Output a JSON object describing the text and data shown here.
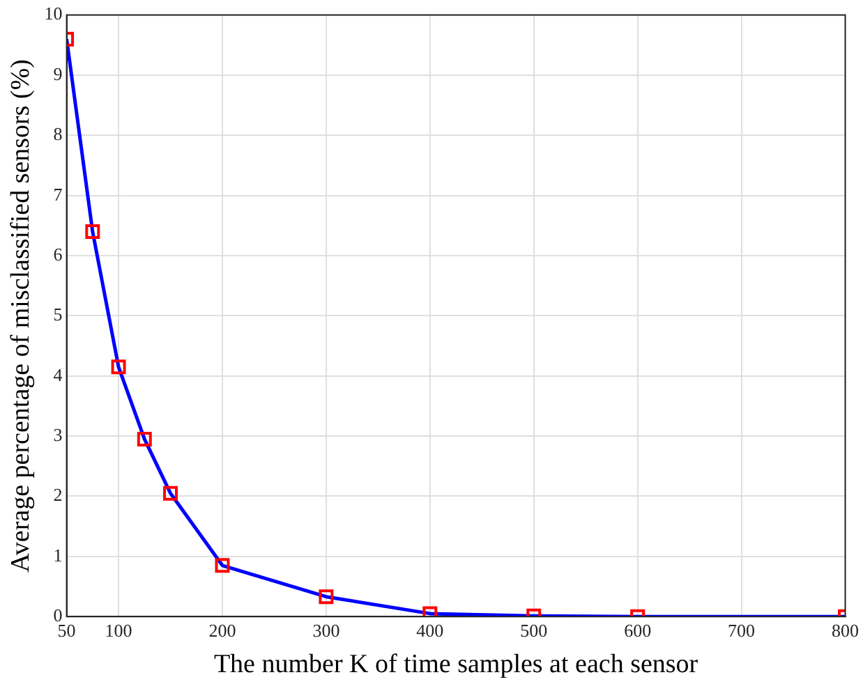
{
  "chart_data": {
    "type": "line",
    "xlabel": "The number K of time samples at each sensor",
    "ylabel": "Average percentage of misclassified sensors (%)",
    "x": [
      50,
      75,
      100,
      125,
      150,
      200,
      300,
      400,
      500,
      600,
      800
    ],
    "series": [
      {
        "color": "#0000ff",
        "colors": [
          "#ff0000",
          "#ff0000",
          "#ff0000",
          "#ff0000",
          "#ff0000",
          "#ff0000",
          "#ff0000",
          "#ff0000",
          "#ff0000",
          "#ff0000",
          "#ff0000"
        ],
        "values": [
          9.6,
          6.4,
          4.15,
          2.95,
          2.05,
          0.85,
          0.33,
          0.05,
          0.01,
          0.0,
          0.0
        ]
      }
    ],
    "xlim": [
      50,
      800
    ],
    "xticks": [
      50,
      100,
      200,
      300,
      400,
      500,
      600,
      700,
      800
    ],
    "ylim": [
      0,
      10
    ],
    "yticks": [
      0,
      1,
      2,
      3,
      4,
      5,
      6,
      7,
      8,
      9,
      10
    ],
    "grid": true,
    "legend": false,
    "marker": "square",
    "line_style": "solid"
  }
}
